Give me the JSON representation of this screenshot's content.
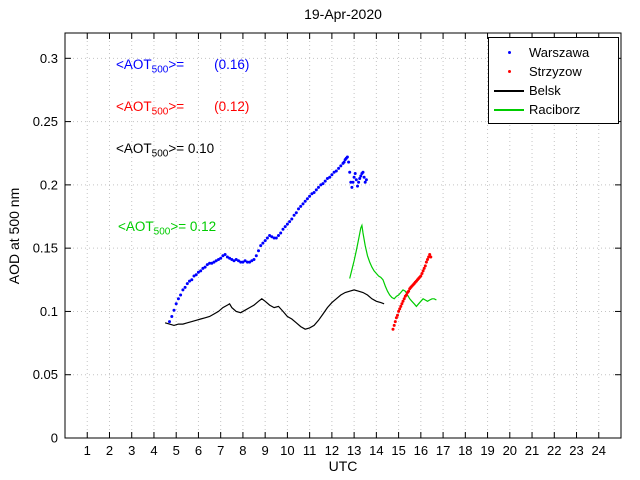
{
  "chart_data": {
    "type": "scatter+line",
    "title": "19-Apr-2020",
    "xlabel": "UTC",
    "ylabel": "AOD at 500 nm",
    "xlim": [
      0,
      25
    ],
    "ylim": [
      0,
      0.32
    ],
    "xticks": [
      1,
      2,
      3,
      4,
      5,
      6,
      7,
      8,
      9,
      10,
      11,
      12,
      13,
      14,
      15,
      16,
      17,
      18,
      19,
      20,
      21,
      22,
      23,
      24
    ],
    "yticks": [
      0,
      0.05,
      0.1,
      0.15,
      0.2,
      0.25,
      0.3
    ],
    "ytick_labels": [
      "0",
      "0.05",
      "0.1",
      "0.15",
      "0.2",
      "0.25",
      "0.3"
    ],
    "grid": true,
    "legend": {
      "position": "top-right",
      "entries": [
        {
          "label": "Warszawa",
          "color": "#0000ff",
          "marker": "dot"
        },
        {
          "label": "Strzyzow",
          "color": "#ff0000",
          "marker": "dot"
        },
        {
          "label": "Belsk",
          "color": "#000000",
          "marker": "line"
        },
        {
          "label": "Raciborz",
          "color": "#00cc00",
          "marker": "line"
        }
      ]
    },
    "annotations": [
      {
        "pre": "<AOT",
        "sub": "500",
        "post": ">=        (0.16)",
        "color": "#0000ff",
        "mean": 0.16
      },
      {
        "pre": "<AOT",
        "sub": "500",
        "post": ">=        (0.12)",
        "color": "#ff0000",
        "mean": 0.12
      },
      {
        "pre": "<AOT",
        "sub": "500",
        "post": ">= 0.10",
        "color": "#000000",
        "mean": 0.1
      },
      {
        "pre": "<AOT",
        "sub": "500",
        "post": ">= 0.12",
        "color": "#00cc00",
        "mean": 0.12
      }
    ],
    "series": [
      {
        "name": "Warszawa",
        "marker": "dot",
        "color": "#0000ff",
        "points": [
          [
            4.7,
            0.092
          ],
          [
            4.8,
            0.096
          ],
          [
            4.9,
            0.101
          ],
          [
            5.0,
            0.106
          ],
          [
            5.1,
            0.11
          ],
          [
            5.2,
            0.113
          ],
          [
            5.3,
            0.117
          ],
          [
            5.4,
            0.119
          ],
          [
            5.5,
            0.122
          ],
          [
            5.6,
            0.124
          ],
          [
            5.7,
            0.125
          ],
          [
            5.8,
            0.128
          ],
          [
            5.9,
            0.129
          ],
          [
            6.0,
            0.131
          ],
          [
            6.1,
            0.132
          ],
          [
            6.2,
            0.134
          ],
          [
            6.3,
            0.135
          ],
          [
            6.4,
            0.137
          ],
          [
            6.5,
            0.138
          ],
          [
            6.6,
            0.138
          ],
          [
            6.7,
            0.139
          ],
          [
            6.8,
            0.14
          ],
          [
            6.9,
            0.141
          ],
          [
            7.0,
            0.142
          ],
          [
            7.1,
            0.144
          ],
          [
            7.2,
            0.145
          ],
          [
            7.3,
            0.143
          ],
          [
            7.4,
            0.142
          ],
          [
            7.5,
            0.141
          ],
          [
            7.6,
            0.14
          ],
          [
            7.7,
            0.141
          ],
          [
            7.8,
            0.14
          ],
          [
            7.9,
            0.139
          ],
          [
            8.0,
            0.139
          ],
          [
            8.1,
            0.14
          ],
          [
            8.2,
            0.139
          ],
          [
            8.3,
            0.139
          ],
          [
            8.4,
            0.14
          ],
          [
            8.5,
            0.141
          ],
          [
            8.6,
            0.144
          ],
          [
            8.7,
            0.148
          ],
          [
            8.8,
            0.152
          ],
          [
            8.9,
            0.154
          ],
          [
            9.0,
            0.156
          ],
          [
            9.1,
            0.158
          ],
          [
            9.2,
            0.16
          ],
          [
            9.3,
            0.159
          ],
          [
            9.4,
            0.158
          ],
          [
            9.5,
            0.158
          ],
          [
            9.6,
            0.16
          ],
          [
            9.7,
            0.162
          ],
          [
            9.8,
            0.165
          ],
          [
            9.9,
            0.167
          ],
          [
            10.0,
            0.169
          ],
          [
            10.1,
            0.171
          ],
          [
            10.2,
            0.173
          ],
          [
            10.3,
            0.176
          ],
          [
            10.4,
            0.178
          ],
          [
            10.5,
            0.181
          ],
          [
            10.6,
            0.183
          ],
          [
            10.7,
            0.185
          ],
          [
            10.8,
            0.187
          ],
          [
            10.9,
            0.189
          ],
          [
            11.0,
            0.191
          ],
          [
            11.1,
            0.193
          ],
          [
            11.2,
            0.194
          ],
          [
            11.3,
            0.196
          ],
          [
            11.4,
            0.198
          ],
          [
            11.5,
            0.2
          ],
          [
            11.6,
            0.201
          ],
          [
            11.7,
            0.203
          ],
          [
            11.8,
            0.205
          ],
          [
            11.9,
            0.206
          ],
          [
            12.0,
            0.208
          ],
          [
            12.1,
            0.21
          ],
          [
            12.2,
            0.211
          ],
          [
            12.3,
            0.213
          ],
          [
            12.4,
            0.215
          ],
          [
            12.5,
            0.217
          ],
          [
            12.55,
            0.218
          ],
          [
            12.6,
            0.22
          ],
          [
            12.65,
            0.221
          ],
          [
            12.7,
            0.222
          ],
          [
            12.75,
            0.218
          ],
          [
            12.8,
            0.21
          ],
          [
            12.85,
            0.202
          ],
          [
            12.9,
            0.198
          ],
          [
            12.95,
            0.202
          ],
          [
            13.0,
            0.206
          ],
          [
            13.05,
            0.209
          ],
          [
            13.1,
            0.204
          ],
          [
            13.15,
            0.199
          ],
          [
            13.2,
            0.202
          ],
          [
            13.25,
            0.205
          ],
          [
            13.3,
            0.207
          ],
          [
            13.35,
            0.209
          ],
          [
            13.4,
            0.21
          ],
          [
            13.45,
            0.206
          ],
          [
            13.5,
            0.202
          ],
          [
            13.55,
            0.204
          ]
        ]
      },
      {
        "name": "Strzyzow",
        "marker": "dot",
        "color": "#ff0000",
        "points": [
          [
            14.75,
            0.086
          ],
          [
            14.8,
            0.089
          ],
          [
            14.85,
            0.092
          ],
          [
            14.9,
            0.095
          ],
          [
            14.95,
            0.097
          ],
          [
            15.0,
            0.1
          ],
          [
            15.05,
            0.102
          ],
          [
            15.1,
            0.104
          ],
          [
            15.15,
            0.106
          ],
          [
            15.2,
            0.108
          ],
          [
            15.25,
            0.11
          ],
          [
            15.3,
            0.112
          ],
          [
            15.35,
            0.113
          ],
          [
            15.4,
            0.115
          ],
          [
            15.45,
            0.116
          ],
          [
            15.5,
            0.118
          ],
          [
            15.55,
            0.119
          ],
          [
            15.6,
            0.12
          ],
          [
            15.65,
            0.121
          ],
          [
            15.7,
            0.122
          ],
          [
            15.75,
            0.123
          ],
          [
            15.8,
            0.124
          ],
          [
            15.85,
            0.125
          ],
          [
            15.9,
            0.126
          ],
          [
            15.95,
            0.127
          ],
          [
            16.0,
            0.128
          ],
          [
            16.05,
            0.13
          ],
          [
            16.1,
            0.132
          ],
          [
            16.15,
            0.134
          ],
          [
            16.2,
            0.136
          ],
          [
            16.25,
            0.139
          ],
          [
            16.3,
            0.141
          ],
          [
            16.35,
            0.143
          ],
          [
            16.4,
            0.145
          ],
          [
            16.45,
            0.143
          ]
        ]
      },
      {
        "name": "Belsk",
        "marker": "line",
        "color": "#000000",
        "points": [
          [
            4.5,
            0.091
          ],
          [
            4.7,
            0.09
          ],
          [
            4.9,
            0.089
          ],
          [
            5.1,
            0.09
          ],
          [
            5.3,
            0.09
          ],
          [
            5.5,
            0.091
          ],
          [
            5.7,
            0.092
          ],
          [
            5.9,
            0.093
          ],
          [
            6.1,
            0.094
          ],
          [
            6.3,
            0.095
          ],
          [
            6.5,
            0.096
          ],
          [
            6.7,
            0.098
          ],
          [
            6.9,
            0.1
          ],
          [
            7.1,
            0.103
          ],
          [
            7.3,
            0.105
          ],
          [
            7.4,
            0.106
          ],
          [
            7.5,
            0.103
          ],
          [
            7.7,
            0.1
          ],
          [
            7.9,
            0.099
          ],
          [
            8.1,
            0.101
          ],
          [
            8.3,
            0.103
          ],
          [
            8.5,
            0.105
          ],
          [
            8.7,
            0.108
          ],
          [
            8.85,
            0.11
          ],
          [
            9.0,
            0.108
          ],
          [
            9.2,
            0.105
          ],
          [
            9.4,
            0.103
          ],
          [
            9.6,
            0.104
          ],
          [
            9.8,
            0.1
          ],
          [
            10.0,
            0.096
          ],
          [
            10.2,
            0.094
          ],
          [
            10.4,
            0.091
          ],
          [
            10.6,
            0.088
          ],
          [
            10.8,
            0.086
          ],
          [
            11.0,
            0.087
          ],
          [
            11.2,
            0.089
          ],
          [
            11.4,
            0.093
          ],
          [
            11.6,
            0.098
          ],
          [
            11.8,
            0.103
          ],
          [
            12.0,
            0.107
          ],
          [
            12.2,
            0.11
          ],
          [
            12.4,
            0.113
          ],
          [
            12.6,
            0.115
          ],
          [
            12.8,
            0.116
          ],
          [
            13.0,
            0.117
          ],
          [
            13.2,
            0.116
          ],
          [
            13.4,
            0.115
          ],
          [
            13.6,
            0.113
          ],
          [
            13.8,
            0.11
          ],
          [
            14.0,
            0.108
          ],
          [
            14.2,
            0.107
          ],
          [
            14.35,
            0.106
          ]
        ]
      },
      {
        "name": "Raciborz",
        "marker": "line",
        "color": "#00cc00",
        "points": [
          [
            12.8,
            0.126
          ],
          [
            12.9,
            0.133
          ],
          [
            13.0,
            0.14
          ],
          [
            13.1,
            0.148
          ],
          [
            13.2,
            0.157
          ],
          [
            13.3,
            0.166
          ],
          [
            13.35,
            0.168
          ],
          [
            13.4,
            0.162
          ],
          [
            13.5,
            0.152
          ],
          [
            13.6,
            0.144
          ],
          [
            13.7,
            0.139
          ],
          [
            13.8,
            0.135
          ],
          [
            13.9,
            0.132
          ],
          [
            14.0,
            0.13
          ],
          [
            14.1,
            0.128
          ],
          [
            14.2,
            0.127
          ],
          [
            14.3,
            0.125
          ],
          [
            14.4,
            0.12
          ],
          [
            14.5,
            0.116
          ],
          [
            14.6,
            0.113
          ],
          [
            14.7,
            0.111
          ],
          [
            14.8,
            0.11
          ],
          [
            14.9,
            0.112
          ],
          [
            15.0,
            0.113
          ],
          [
            15.1,
            0.115
          ],
          [
            15.2,
            0.117
          ],
          [
            15.3,
            0.116
          ],
          [
            15.4,
            0.113
          ],
          [
            15.5,
            0.11
          ],
          [
            15.6,
            0.108
          ],
          [
            15.7,
            0.106
          ],
          [
            15.8,
            0.104
          ],
          [
            15.9,
            0.106
          ],
          [
            16.0,
            0.108
          ],
          [
            16.1,
            0.11
          ],
          [
            16.2,
            0.109
          ],
          [
            16.3,
            0.108
          ],
          [
            16.4,
            0.109
          ],
          [
            16.5,
            0.11
          ],
          [
            16.6,
            0.11
          ],
          [
            16.7,
            0.109
          ]
        ]
      }
    ]
  }
}
